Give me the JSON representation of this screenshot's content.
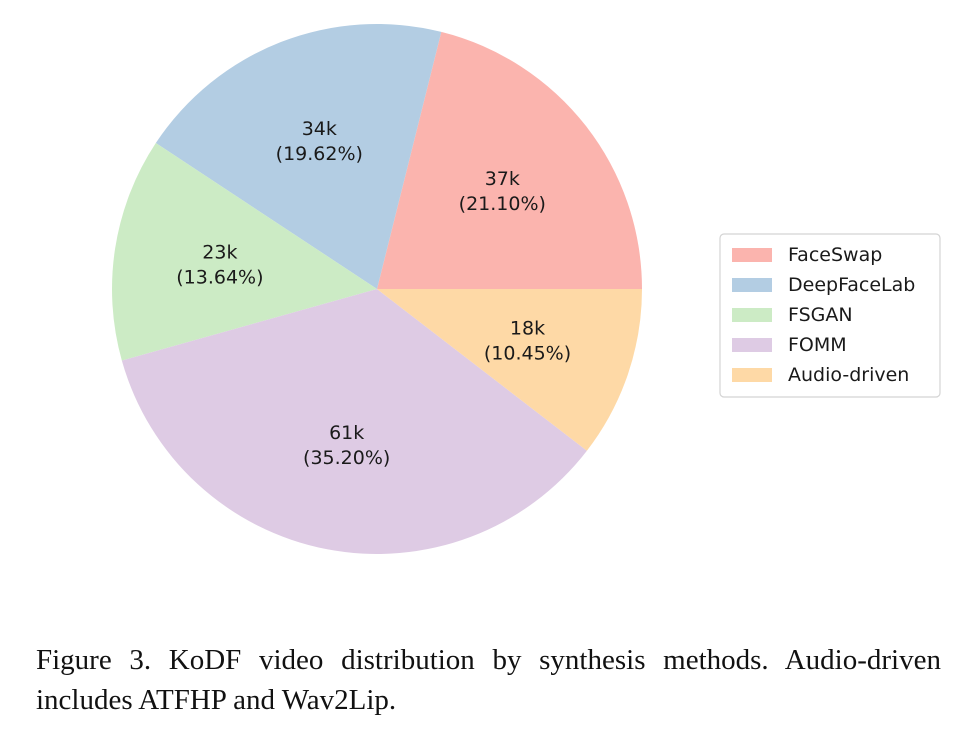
{
  "chart_data": {
    "type": "pie",
    "title": "",
    "categories": [
      "FaceSwap",
      "DeepFaceLab",
      "FSGAN",
      "FOMM",
      "Audio-driven"
    ],
    "values": [
      21.1,
      19.62,
      13.64,
      35.2,
      10.45
    ],
    "slice_labels": [
      {
        "count": "37k",
        "percent": "(21.10%)"
      },
      {
        "count": "34k",
        "percent": "(19.62%)"
      },
      {
        "count": "23k",
        "percent": "(13.64%)"
      },
      {
        "count": "61k",
        "percent": "(35.20%)"
      },
      {
        "count": "18k",
        "percent": "(10.45%)"
      }
    ],
    "colors": [
      "#fbb4ae",
      "#b3cde3",
      "#ccebc5",
      "#decbe4",
      "#fed9a6"
    ],
    "start_angle_deg": 0,
    "direction": "counterclockwise",
    "legend": {
      "placement": "right",
      "entries": [
        "FaceSwap",
        "DeepFaceLab",
        "FSGAN",
        "FOMM",
        "Audio-driven"
      ]
    }
  },
  "caption": "Figure 3. KoDF video distribution by synthesis methods. Audio-driven includes ATFHP and Wav2Lip."
}
